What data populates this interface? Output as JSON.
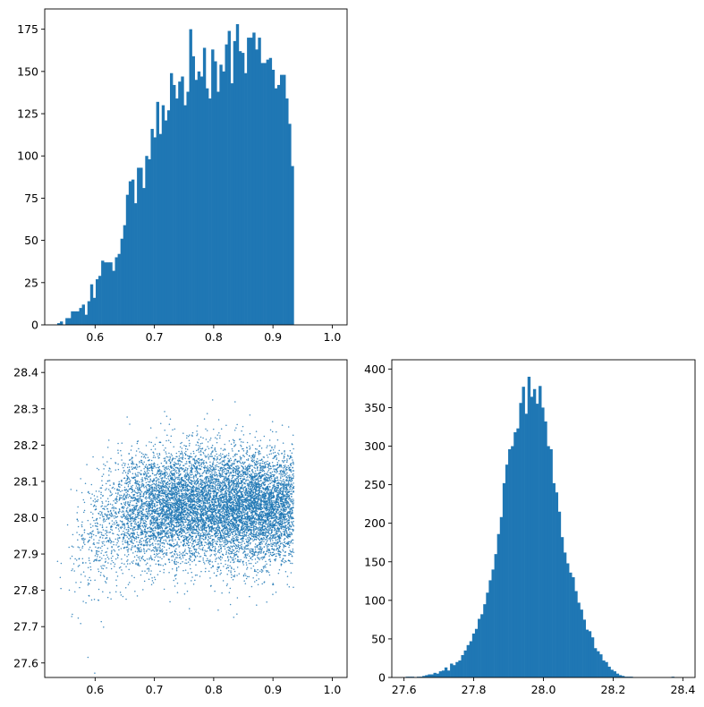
{
  "colors": {
    "bar": "#1f77b4",
    "point": "#1f77b4",
    "axes": "#000000",
    "background": "#ffffff"
  },
  "chart_data": [
    {
      "id": "top-left",
      "type": "bar",
      "title": "",
      "xlabel": "",
      "ylabel": "",
      "xlim": [
        0.515,
        1.025
      ],
      "ylim": [
        0,
        187
      ],
      "xticks": [
        0.6,
        0.7,
        0.8,
        0.9,
        1.0
      ],
      "xtick_labels": [
        "0.6",
        "0.7",
        "0.8",
        "0.9",
        "1.0"
      ],
      "yticks": [
        0,
        25,
        50,
        75,
        100,
        125,
        150,
        175
      ],
      "ytick_labels": [
        "0",
        "25",
        "50",
        "75",
        "100",
        "125",
        "150",
        "175"
      ],
      "bin_start": 0.536,
      "bin_width": 0.00464,
      "values": [
        1,
        2,
        0,
        4,
        4,
        8,
        8,
        8,
        10,
        12,
        6,
        14,
        24,
        16,
        27,
        29,
        38,
        37,
        37,
        37,
        32,
        40,
        42,
        51,
        59,
        77,
        85,
        86,
        72,
        93,
        93,
        81,
        100,
        98,
        116,
        111,
        132,
        113,
        130,
        121,
        127,
        149,
        142,
        134,
        144,
        147,
        130,
        138,
        175,
        159,
        145,
        150,
        147,
        164,
        140,
        134,
        163,
        156,
        138,
        154,
        150,
        166,
        174,
        143,
        168,
        178,
        162,
        161,
        149,
        170,
        170,
        173,
        163,
        170,
        155,
        155,
        157,
        158,
        151,
        140,
        142,
        148,
        148,
        134,
        119,
        94
      ]
    },
    {
      "id": "bottom-left",
      "type": "scatter",
      "title": "",
      "xlabel": "",
      "ylabel": "",
      "xlim": [
        0.515,
        1.025
      ],
      "ylim": [
        27.56,
        28.435
      ],
      "xticks": [
        0.6,
        0.7,
        0.8,
        0.9,
        1.0
      ],
      "xtick_labels": [
        "0.6",
        "0.7",
        "0.8",
        "0.9",
        "1.0"
      ],
      "yticks": [
        27.6,
        27.7,
        27.8,
        27.9,
        28.0,
        28.1,
        28.2,
        28.3,
        28.4
      ],
      "ytick_labels": [
        "27.6",
        "27.7",
        "27.8",
        "27.9",
        "28.0",
        "28.1",
        "28.2",
        "28.3",
        "28.4"
      ],
      "x_range": [
        0.536,
        1.0
      ],
      "y_center": 28.03,
      "y_std": 0.09,
      "point_count": 10000
    },
    {
      "id": "bottom-right",
      "type": "bar",
      "title": "",
      "xlabel": "",
      "ylabel": "",
      "xlim": [
        27.565,
        28.435
      ],
      "ylim": [
        0,
        412
      ],
      "xticks": [
        27.6,
        27.8,
        28.0,
        28.2,
        28.4
      ],
      "xtick_labels": [
        "27.6",
        "27.8",
        "28.0",
        "28.2",
        "28.4"
      ],
      "yticks": [
        0,
        50,
        100,
        150,
        200,
        250,
        300,
        350,
        400
      ],
      "ytick_labels": [
        "0",
        "50",
        "100",
        "150",
        "200",
        "250",
        "300",
        "350",
        "400"
      ],
      "bin_start": 27.605,
      "bin_width": 0.00794,
      "values": [
        1,
        1,
        1,
        0,
        1,
        1,
        2,
        3,
        4,
        4,
        6,
        5,
        8,
        9,
        13,
        9,
        18,
        16,
        20,
        22,
        29,
        35,
        42,
        47,
        57,
        63,
        76,
        82,
        95,
        110,
        126,
        140,
        160,
        186,
        208,
        252,
        276,
        296,
        300,
        318,
        323,
        356,
        377,
        342,
        390,
        364,
        374,
        355,
        378,
        350,
        332,
        300,
        296,
        252,
        240,
        215,
        182,
        162,
        148,
        136,
        130,
        112,
        97,
        88,
        75,
        62,
        60,
        52,
        38,
        34,
        30,
        22,
        20,
        14,
        10,
        8,
        5,
        3,
        2,
        1,
        1,
        1,
        0,
        0,
        0,
        0,
        0,
        0,
        0,
        0,
        0,
        0,
        0,
        0,
        0,
        0,
        1,
        0,
        0
      ]
    }
  ]
}
